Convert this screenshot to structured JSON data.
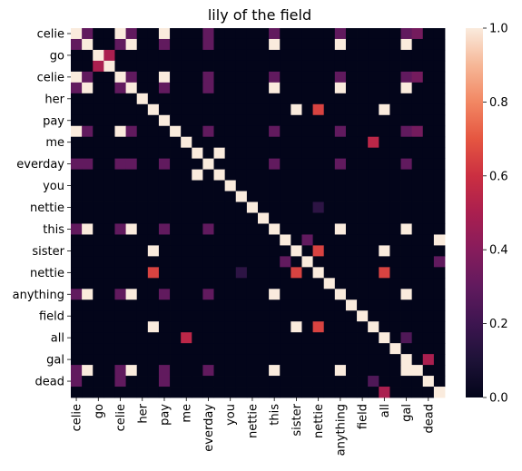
{
  "chart_data": {
    "type": "heatmap",
    "title": "lily of the field",
    "xlabel": "",
    "ylabel": "",
    "labels": [
      "celie",
      "celie",
      "go",
      "go",
      "celie",
      "celie",
      "her",
      "her",
      "pay",
      "pay",
      "me",
      "me",
      "everday",
      "everday",
      "you",
      "you",
      "nettie",
      "nettie",
      "this",
      "this",
      "sister",
      "sister",
      "nettie",
      "nettie",
      "anything",
      "anything",
      "field",
      "field",
      "all",
      "all",
      "gal",
      "gal",
      "dead",
      "dead"
    ],
    "y_tick_labels": [
      "celie",
      "go",
      "celie",
      "her",
      "pay",
      "me",
      "everday",
      "you",
      "nettie",
      "this",
      "sister",
      "nettie",
      "anything",
      "field",
      "all",
      "gal",
      "dead"
    ],
    "x_tick_labels": [
      "celie",
      "go",
      "celie",
      "her",
      "pay",
      "me",
      "everday",
      "you",
      "nettie",
      "this",
      "sister",
      "nettie",
      "anything",
      "field",
      "all",
      "gal",
      "dead"
    ],
    "colorbar": {
      "min": 0.0,
      "max": 1.0,
      "ticks": [
        "0.0",
        "0.2",
        "0.4",
        "0.6",
        "0.8",
        "1.0"
      ]
    },
    "colorscale": [
      "#03051a",
      "#1d1237",
      "#3d1550",
      "#611a5e",
      "#871c5c",
      "#aa1f4f",
      "#cb2f41",
      "#e55641",
      "#f28763",
      "#f6b797",
      "#faebdd"
    ],
    "matrix": [
      [
        1.0,
        0.3,
        0,
        0,
        1.0,
        0.3,
        0,
        0,
        1.0,
        0,
        0,
        0,
        0.3,
        0,
        0,
        0,
        0,
        0,
        0.3,
        0,
        0,
        0,
        0,
        0,
        0.3,
        0,
        0,
        0,
        0,
        0,
        0.3,
        0.35,
        0,
        0
      ],
      [
        0.3,
        1.0,
        0,
        0,
        0.3,
        1.0,
        0,
        0,
        0.3,
        0,
        0,
        0,
        0.3,
        0,
        0,
        0,
        0,
        0,
        1.0,
        0,
        0,
        0,
        0,
        0,
        1.0,
        0,
        0,
        0,
        0,
        0,
        1.0,
        0,
        0,
        0
      ],
      [
        0,
        0,
        1.0,
        0.5,
        0,
        0,
        0,
        0,
        0,
        0,
        0,
        0,
        0,
        0,
        0,
        0,
        0,
        0,
        0,
        0,
        0,
        0,
        0,
        0,
        0,
        0,
        0,
        0,
        0,
        0,
        0,
        0,
        0,
        0
      ],
      [
        0,
        0,
        0.5,
        1.0,
        0,
        0,
        0,
        0,
        0,
        0,
        0,
        0,
        0,
        0,
        0,
        0,
        0,
        0,
        0,
        0,
        0,
        0,
        0,
        0,
        0,
        0,
        0,
        0,
        0,
        0,
        0,
        0,
        0,
        0
      ],
      [
        1.0,
        0.3,
        0,
        0,
        1.0,
        0.3,
        0,
        0,
        1.0,
        0,
        0,
        0,
        0.3,
        0,
        0,
        0,
        0,
        0,
        0.3,
        0,
        0,
        0,
        0,
        0,
        0.3,
        0,
        0,
        0,
        0,
        0,
        0.3,
        0.35,
        0,
        0
      ],
      [
        0.3,
        1.0,
        0,
        0,
        0.3,
        1.0,
        0,
        0,
        0.3,
        0,
        0,
        0,
        0.3,
        0,
        0,
        0,
        0,
        0,
        1.0,
        0,
        0,
        0,
        0,
        0,
        1.0,
        0,
        0,
        0,
        0,
        0,
        1.0,
        0,
        0,
        0
      ],
      [
        0,
        0,
        0,
        0,
        0,
        0,
        1.0,
        0,
        0,
        0,
        0,
        0,
        0,
        0,
        0,
        0,
        0,
        0,
        0,
        0,
        0,
        0,
        0,
        0,
        0,
        0,
        0,
        0,
        0,
        0,
        0,
        0,
        0,
        0
      ],
      [
        0,
        0,
        0,
        0,
        0,
        0,
        0,
        1.0,
        0,
        0,
        0,
        0,
        0,
        0,
        0,
        0,
        0,
        0,
        0,
        0,
        1.0,
        0,
        0.65,
        0,
        0,
        0,
        0,
        0,
        1.0,
        0,
        0,
        0,
        0,
        0
      ],
      [
        0,
        0,
        0,
        0,
        0,
        0,
        0,
        0,
        1.0,
        0,
        0,
        0,
        0,
        0,
        0,
        0,
        0,
        0,
        0,
        0,
        0,
        0,
        0,
        0,
        0,
        0,
        0,
        0,
        0,
        0,
        0,
        0,
        0,
        0
      ],
      [
        1.0,
        0.3,
        0,
        0,
        1.0,
        0.3,
        0,
        0,
        0,
        1.0,
        0,
        0,
        0.3,
        0,
        0,
        0,
        0,
        0,
        0.3,
        0,
        0,
        0,
        0,
        0,
        0.3,
        0,
        0,
        0,
        0,
        0,
        0.3,
        0.35,
        0,
        0
      ],
      [
        0,
        0,
        0,
        0,
        0,
        0,
        0,
        0,
        0,
        0,
        1.0,
        0,
        0,
        0,
        0,
        0,
        0,
        0,
        0,
        0,
        0,
        0,
        0,
        0,
        0,
        0,
        0,
        0.55,
        0,
        0,
        0,
        0,
        0,
        0
      ],
      [
        0,
        0,
        0,
        0,
        0,
        0,
        0,
        0,
        0,
        0,
        0,
        1.0,
        0,
        1.0,
        0,
        0,
        0,
        0,
        0,
        0,
        0,
        0,
        0,
        0,
        0,
        0,
        0,
        0,
        0,
        0,
        0,
        0,
        0,
        0
      ],
      [
        0.3,
        0.3,
        0,
        0,
        0.3,
        0.3,
        0,
        0,
        0.3,
        0,
        0,
        0,
        1.0,
        0,
        0,
        0,
        0,
        0,
        0.3,
        0,
        0,
        0,
        0,
        0,
        0.3,
        0,
        0,
        0,
        0,
        0,
        0.3,
        0,
        0,
        0
      ],
      [
        0,
        0,
        0,
        0,
        0,
        0,
        0,
        0,
        0,
        0,
        0,
        1.0,
        0,
        1.0,
        0,
        0,
        0,
        0,
        0,
        0,
        0,
        0,
        0,
        0,
        0,
        0,
        0,
        0,
        0,
        0,
        0,
        0,
        0,
        0
      ],
      [
        0,
        0,
        0,
        0,
        0,
        0,
        0,
        0,
        0,
        0,
        0,
        0,
        0,
        0,
        1.0,
        0,
        0,
        0,
        0,
        0,
        0,
        0,
        0,
        0,
        0,
        0,
        0,
        0,
        0,
        0,
        0,
        0,
        0,
        0
      ],
      [
        0,
        0,
        0,
        0,
        0,
        0,
        0,
        0,
        0,
        0,
        0,
        0,
        0,
        0,
        0,
        1.0,
        0,
        0,
        0,
        0,
        0,
        0,
        0,
        0,
        0,
        0,
        0,
        0,
        0,
        0,
        0,
        0,
        0,
        0
      ],
      [
        0,
        0,
        0,
        0,
        0,
        0,
        0,
        0,
        0,
        0,
        0,
        0,
        0,
        0,
        0,
        0,
        1.0,
        0,
        0,
        0,
        0,
        0,
        0.15,
        0,
        0,
        0,
        0,
        0,
        0,
        0,
        0,
        0,
        0,
        0
      ],
      [
        0,
        0,
        0,
        0,
        0,
        0,
        0,
        0,
        0,
        0,
        0,
        0,
        0,
        0,
        0,
        0,
        0,
        1.0,
        0,
        0,
        0,
        0,
        0,
        0,
        0,
        0,
        0,
        0,
        0,
        0,
        0,
        0,
        0,
        0
      ],
      [
        0.3,
        1.0,
        0,
        0,
        0.3,
        1.0,
        0,
        0,
        0.3,
        0,
        0,
        0,
        0.3,
        0,
        0,
        0,
        0,
        0,
        1.0,
        0,
        0,
        0,
        0,
        0,
        1.0,
        0,
        0,
        0,
        0,
        0,
        1.0,
        0,
        0,
        0
      ],
      [
        0,
        0,
        0,
        0,
        0,
        0,
        0,
        0,
        0,
        0,
        0,
        0,
        0,
        0,
        0,
        0,
        0,
        0,
        0,
        1.0,
        0,
        0.3,
        0,
        0,
        0,
        0,
        0,
        0,
        0,
        0,
        0,
        0,
        0,
        1.0
      ],
      [
        0,
        0,
        0,
        0,
        0,
        0,
        0,
        1.0,
        0,
        0,
        0,
        0,
        0,
        0,
        0,
        0,
        0,
        0,
        0,
        0,
        1.0,
        0,
        0.65,
        0,
        0,
        0,
        0,
        0,
        1.0,
        0,
        0,
        0,
        0,
        0
      ],
      [
        0,
        0,
        0,
        0,
        0,
        0,
        0,
        0,
        0,
        0,
        0,
        0,
        0,
        0,
        0,
        0,
        0,
        0,
        0,
        0.3,
        0,
        1.0,
        0,
        0,
        0,
        0,
        0,
        0,
        0,
        0,
        0,
        0,
        0,
        0.3
      ],
      [
        0,
        0,
        0,
        0,
        0,
        0,
        0,
        0.65,
        0,
        0,
        0,
        0,
        0,
        0,
        0,
        0.15,
        0,
        0,
        0,
        0,
        0.65,
        0,
        1.0,
        0,
        0,
        0,
        0,
        0,
        0.65,
        0,
        0,
        0,
        0,
        0
      ],
      [
        0,
        0,
        0,
        0,
        0,
        0,
        0,
        0,
        0,
        0,
        0,
        0,
        0,
        0,
        0,
        0,
        0,
        0,
        0,
        0,
        0,
        0,
        0,
        1.0,
        0,
        0,
        0,
        0,
        0,
        0,
        0,
        0,
        0,
        0
      ],
      [
        0.3,
        1.0,
        0,
        0,
        0.3,
        1.0,
        0,
        0,
        0.3,
        0,
        0,
        0,
        0.3,
        0,
        0,
        0,
        0,
        0,
        1.0,
        0,
        0,
        0,
        0,
        0,
        1.0,
        0,
        0,
        0,
        0,
        0,
        1.0,
        0,
        0,
        0
      ],
      [
        0,
        0,
        0,
        0,
        0,
        0,
        0,
        0,
        0,
        0,
        0,
        0,
        0,
        0,
        0,
        0,
        0,
        0,
        0,
        0,
        0,
        0,
        0,
        0,
        0,
        1.0,
        0,
        0,
        0,
        0,
        0,
        0,
        0,
        0
      ],
      [
        0,
        0,
        0,
        0,
        0,
        0,
        0,
        0,
        0,
        0,
        0,
        0,
        0,
        0,
        0,
        0,
        0,
        0,
        0,
        0,
        0,
        0,
        0,
        0,
        0,
        0,
        1.0,
        0,
        0,
        0,
        0,
        0,
        0,
        0
      ],
      [
        0,
        0,
        0,
        0,
        0,
        0,
        0,
        1.0,
        0,
        0,
        0,
        0,
        0,
        0,
        0,
        0,
        0,
        0,
        0,
        0,
        1.0,
        0,
        0.65,
        0,
        0,
        0,
        0,
        1.0,
        0,
        0,
        0,
        0,
        0,
        0
      ],
      [
        0,
        0,
        0,
        0,
        0,
        0,
        0,
        0,
        0,
        0,
        0.55,
        0,
        0,
        0,
        0,
        0,
        0,
        0,
        0,
        0,
        0,
        0,
        0,
        0,
        0,
        0,
        0,
        0,
        1.0,
        0,
        0.25,
        0,
        0,
        0
      ],
      [
        0,
        0,
        0,
        0,
        0,
        0,
        0,
        0,
        0,
        0,
        0,
        0,
        0,
        0,
        0,
        0,
        0,
        0,
        0,
        0,
        0,
        0,
        0,
        0,
        0,
        0,
        0,
        0,
        0,
        1.0,
        0,
        0,
        0,
        0
      ],
      [
        0,
        0,
        0,
        0,
        0,
        0,
        0,
        0,
        0,
        0,
        0,
        0,
        0,
        0,
        0,
        0,
        0,
        0,
        0,
        0,
        0,
        0,
        0,
        0,
        0,
        0,
        0,
        0,
        0,
        0,
        1.0,
        0,
        0.5,
        0
      ],
      [
        0.3,
        1.0,
        0,
        0,
        0.3,
        1.0,
        0,
        0,
        0.3,
        0,
        0,
        0,
        0.3,
        0,
        0,
        0,
        0,
        0,
        1.0,
        0,
        0,
        0,
        0,
        0,
        1.0,
        0,
        0,
        0,
        0,
        0,
        1.0,
        1.0,
        0,
        0
      ],
      [
        0.3,
        0,
        0,
        0,
        0.3,
        0,
        0,
        0,
        0.3,
        0,
        0,
        0,
        0,
        0,
        0,
        0,
        0,
        0,
        0,
        0,
        0,
        0,
        0,
        0,
        0,
        0,
        0,
        0.25,
        0,
        0,
        0,
        0,
        1.0,
        0
      ],
      [
        0,
        0,
        0,
        0,
        0,
        0,
        0,
        0,
        0,
        0,
        0,
        0,
        0,
        0,
        0,
        0,
        0,
        0,
        0,
        0,
        0,
        0,
        0,
        0,
        0,
        0,
        0,
        0,
        0.5,
        0,
        0,
        0,
        0,
        1.0
      ]
    ]
  }
}
